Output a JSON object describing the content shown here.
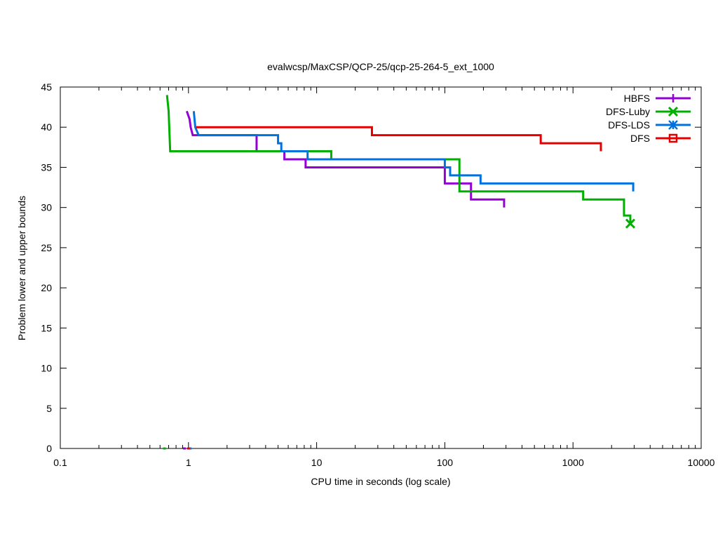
{
  "chart_data": {
    "type": "line",
    "title": "evalwcsp/MaxCSP/QCP-25/qcp-25-264-5_ext_1000",
    "xlabel": "CPU time in seconds (log scale)",
    "ylabel": "Problem lower and upper bounds",
    "xscale": "log",
    "xlim": [
      0.1,
      10000
    ],
    "ylim": [
      0,
      45
    ],
    "xticks": [
      0.1,
      1,
      10,
      100,
      1000,
      10000
    ],
    "xtick_labels": [
      "0.1",
      "1",
      "10",
      "100",
      "1000",
      "10000"
    ],
    "yticks": [
      0,
      5,
      10,
      15,
      20,
      25,
      30,
      35,
      40,
      45
    ],
    "ytick_labels": [
      "0",
      "5",
      "10",
      "15",
      "20",
      "25",
      "30",
      "35",
      "40",
      "45"
    ],
    "legend_position": "top-right",
    "series": [
      {
        "name": "HBFS",
        "color": "#9400d3",
        "marker": "plus",
        "lower_bound_at": 0.93,
        "points": [
          [
            0.97,
            42
          ],
          [
            1.02,
            41
          ],
          [
            1.04,
            40
          ],
          [
            1.08,
            39
          ],
          [
            3.4,
            39
          ],
          [
            3.4,
            37
          ],
          [
            5.6,
            37
          ],
          [
            5.6,
            36
          ],
          [
            8.2,
            36
          ],
          [
            8.2,
            35
          ],
          [
            100,
            35
          ],
          [
            100,
            33
          ],
          [
            160,
            33
          ],
          [
            160,
            31
          ],
          [
            290,
            31
          ],
          [
            290,
            30
          ]
        ]
      },
      {
        "name": "DFS-Luby",
        "color": "#00b000",
        "marker": "x",
        "lower_bound_at": 0.65,
        "points": [
          [
            0.68,
            44
          ],
          [
            0.69,
            43
          ],
          [
            0.7,
            42
          ],
          [
            0.72,
            37
          ],
          [
            13,
            37
          ],
          [
            13,
            36
          ],
          [
            130,
            36
          ],
          [
            130,
            32
          ],
          [
            1200,
            32
          ],
          [
            1200,
            31
          ],
          [
            2500,
            31
          ],
          [
            2500,
            29
          ],
          [
            2800,
            29
          ],
          [
            2800,
            28
          ]
        ]
      },
      {
        "name": "DFS-LDS",
        "color": "#0072e0",
        "marker": "star",
        "lower_bound_at": 1.03,
        "points": [
          [
            1.1,
            42
          ],
          [
            1.13,
            40
          ],
          [
            1.2,
            39
          ],
          [
            5.0,
            39
          ],
          [
            5.0,
            38
          ],
          [
            5.3,
            38
          ],
          [
            5.3,
            37
          ],
          [
            8.5,
            37
          ],
          [
            8.5,
            36
          ],
          [
            100,
            36
          ],
          [
            100,
            35
          ],
          [
            110,
            35
          ],
          [
            110,
            34
          ],
          [
            190,
            34
          ],
          [
            190,
            33
          ],
          [
            2950,
            33
          ],
          [
            2950,
            32
          ]
        ]
      },
      {
        "name": "DFS",
        "color": "#e50000",
        "marker": "square",
        "lower_bound_at": 1.0,
        "points": [
          [
            1.15,
            40
          ],
          [
            27,
            40
          ],
          [
            27,
            39
          ],
          [
            560,
            39
          ],
          [
            560,
            38
          ],
          [
            1650,
            38
          ],
          [
            1650,
            37
          ]
        ]
      }
    ]
  }
}
